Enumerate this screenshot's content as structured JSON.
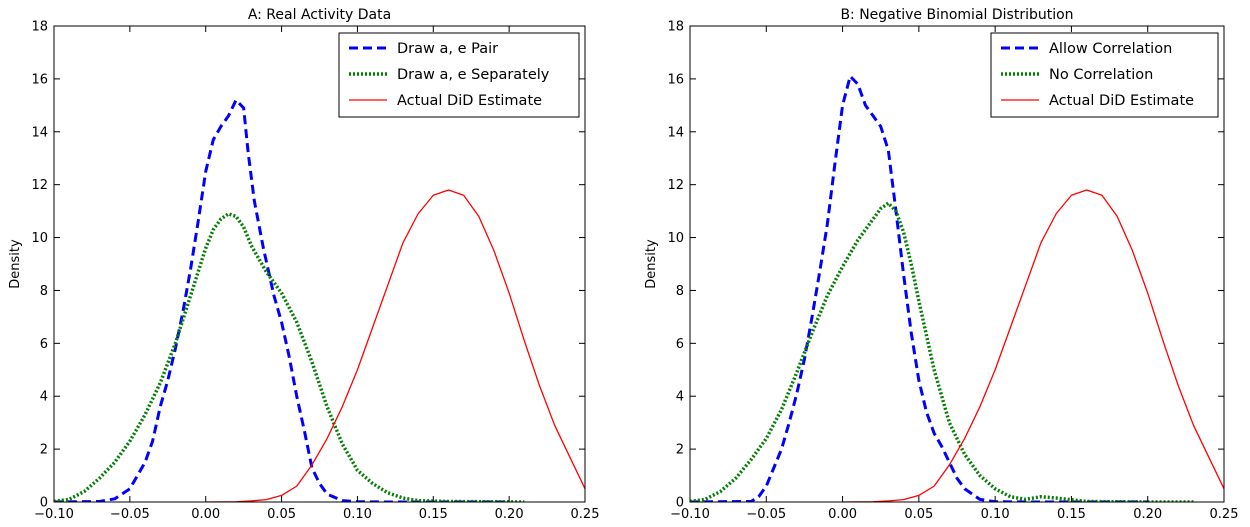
{
  "chart_data": [
    {
      "type": "line",
      "title": "A: Real Activity Data",
      "xlabel": "",
      "ylabel": "Density",
      "xlim": [
        -0.1,
        0.25
      ],
      "ylim": [
        0,
        18
      ],
      "xticks": [
        "−0.10",
        "−0.05",
        "0.00",
        "0.05",
        "0.10",
        "0.15",
        "0.20",
        "0.25"
      ],
      "xtick_values": [
        -0.1,
        -0.05,
        0.0,
        0.05,
        0.1,
        0.15,
        0.2,
        0.25
      ],
      "yticks": [
        "0",
        "2",
        "4",
        "6",
        "8",
        "10",
        "12",
        "14",
        "16",
        "18"
      ],
      "ytick_values": [
        0,
        2,
        4,
        6,
        8,
        10,
        12,
        14,
        16,
        18
      ],
      "legend_position": "top-right",
      "series": [
        {
          "name": "Draw a, e Pair",
          "color": "#0000ff",
          "style": "dashed",
          "points": [
            [
              -0.1,
              0
            ],
            [
              -0.07,
              0.02
            ],
            [
              -0.06,
              0.12
            ],
            [
              -0.05,
              0.5
            ],
            [
              -0.04,
              1.5
            ],
            [
              -0.035,
              2.3
            ],
            [
              -0.03,
              3.6
            ],
            [
              -0.025,
              4.6
            ],
            [
              -0.02,
              5.8
            ],
            [
              -0.015,
              7.2
            ],
            [
              -0.01,
              8.8
            ],
            [
              -0.005,
              10.6
            ],
            [
              0.0,
              12.5
            ],
            [
              0.005,
              13.7
            ],
            [
              0.01,
              14.2
            ],
            [
              0.015,
              14.6
            ],
            [
              0.02,
              15.2
            ],
            [
              0.025,
              14.9
            ],
            [
              0.028,
              13.2
            ],
            [
              0.032,
              11.4
            ],
            [
              0.038,
              9.6
            ],
            [
              0.045,
              7.8
            ],
            [
              0.05,
              6.8
            ],
            [
              0.055,
              5.5
            ],
            [
              0.06,
              4.0
            ],
            [
              0.065,
              2.7
            ],
            [
              0.07,
              1.3
            ],
            [
              0.075,
              0.7
            ],
            [
              0.08,
              0.3
            ],
            [
              0.09,
              0.05
            ],
            [
              0.1,
              0.01
            ],
            [
              0.12,
              0
            ],
            [
              0.2,
              0
            ]
          ]
        },
        {
          "name": "Draw a, e Separately",
          "color": "#007f00",
          "style": "dotted",
          "points": [
            [
              -0.1,
              0.02
            ],
            [
              -0.09,
              0.1
            ],
            [
              -0.08,
              0.4
            ],
            [
              -0.07,
              0.9
            ],
            [
              -0.06,
              1.5
            ],
            [
              -0.05,
              2.3
            ],
            [
              -0.04,
              3.3
            ],
            [
              -0.03,
              4.5
            ],
            [
              -0.02,
              6.0
            ],
            [
              -0.01,
              7.8
            ],
            [
              0.0,
              9.6
            ],
            [
              0.005,
              10.3
            ],
            [
              0.01,
              10.7
            ],
            [
              0.015,
              10.9
            ],
            [
              0.02,
              10.8
            ],
            [
              0.025,
              10.4
            ],
            [
              0.03,
              9.7
            ],
            [
              0.04,
              8.7
            ],
            [
              0.05,
              7.9
            ],
            [
              0.06,
              6.8
            ],
            [
              0.07,
              5.3
            ],
            [
              0.08,
              3.6
            ],
            [
              0.09,
              2.2
            ],
            [
              0.1,
              1.2
            ],
            [
              0.11,
              0.7
            ],
            [
              0.12,
              0.35
            ],
            [
              0.13,
              0.15
            ],
            [
              0.14,
              0.05
            ],
            [
              0.16,
              0.02
            ],
            [
              0.21,
              0
            ]
          ]
        },
        {
          "name": "Actual DiD Estimate",
          "color": "#ff0000",
          "style": "solid",
          "points": [
            [
              0.0,
              0
            ],
            [
              0.02,
              0.01
            ],
            [
              0.03,
              0.04
            ],
            [
              0.04,
              0.09
            ],
            [
              0.05,
              0.25
            ],
            [
              0.06,
              0.6
            ],
            [
              0.07,
              1.4
            ],
            [
              0.08,
              2.4
            ],
            [
              0.09,
              3.6
            ],
            [
              0.1,
              5.0
            ],
            [
              0.11,
              6.6
            ],
            [
              0.12,
              8.2
            ],
            [
              0.13,
              9.8
            ],
            [
              0.14,
              10.9
            ],
            [
              0.15,
              11.6
            ],
            [
              0.16,
              11.8
            ],
            [
              0.17,
              11.6
            ],
            [
              0.18,
              10.8
            ],
            [
              0.19,
              9.5
            ],
            [
              0.2,
              7.9
            ],
            [
              0.21,
              6.1
            ],
            [
              0.22,
              4.4
            ],
            [
              0.23,
              2.9
            ],
            [
              0.24,
              1.7
            ],
            [
              0.25,
              0.5
            ]
          ]
        }
      ]
    },
    {
      "type": "line",
      "title": "B: Negative Binomial Distribution",
      "xlabel": "",
      "ylabel": "Density",
      "xlim": [
        -0.1,
        0.25
      ],
      "ylim": [
        0,
        18
      ],
      "xticks": [
        "−0.10",
        "−0.05",
        "0.00",
        "0.05",
        "0.10",
        "0.15",
        "0.20",
        "0.25"
      ],
      "xtick_values": [
        -0.1,
        -0.05,
        0.0,
        0.05,
        0.1,
        0.15,
        0.2,
        0.25
      ],
      "yticks": [
        "0",
        "2",
        "4",
        "6",
        "8",
        "10",
        "12",
        "14",
        "16",
        "18"
      ],
      "ytick_values": [
        0,
        2,
        4,
        6,
        8,
        10,
        12,
        14,
        16,
        18
      ],
      "legend_position": "top-right",
      "series": [
        {
          "name": "Allow Correlation",
          "color": "#0000ff",
          "style": "dashed",
          "points": [
            [
              -0.1,
              0
            ],
            [
              -0.06,
              0.02
            ],
            [
              -0.055,
              0.2
            ],
            [
              -0.05,
              0.6
            ],
            [
              -0.045,
              1.3
            ],
            [
              -0.04,
              2.0
            ],
            [
              -0.035,
              3.0
            ],
            [
              -0.03,
              4.1
            ],
            [
              -0.025,
              5.4
            ],
            [
              -0.02,
              7.0
            ],
            [
              -0.015,
              8.7
            ],
            [
              -0.01,
              10.5
            ],
            [
              -0.005,
              12.8
            ],
            [
              0.0,
              15.0
            ],
            [
              0.005,
              16.1
            ],
            [
              0.01,
              15.8
            ],
            [
              0.015,
              15.0
            ],
            [
              0.02,
              14.6
            ],
            [
              0.025,
              14.2
            ],
            [
              0.03,
              13.3
            ],
            [
              0.035,
              11.0
            ],
            [
              0.04,
              8.6
            ],
            [
              0.045,
              6.4
            ],
            [
              0.05,
              4.6
            ],
            [
              0.055,
              3.4
            ],
            [
              0.06,
              2.6
            ],
            [
              0.065,
              2.1
            ],
            [
              0.07,
              1.5
            ],
            [
              0.075,
              0.9
            ],
            [
              0.08,
              0.5
            ],
            [
              0.09,
              0.1
            ],
            [
              0.1,
              0.01
            ],
            [
              0.12,
              0
            ],
            [
              0.2,
              0
            ]
          ]
        },
        {
          "name": "No Correlation",
          "color": "#007f00",
          "style": "dotted",
          "points": [
            [
              -0.1,
              0.02
            ],
            [
              -0.09,
              0.1
            ],
            [
              -0.08,
              0.4
            ],
            [
              -0.07,
              0.9
            ],
            [
              -0.06,
              1.6
            ],
            [
              -0.05,
              2.4
            ],
            [
              -0.04,
              3.5
            ],
            [
              -0.03,
              4.9
            ],
            [
              -0.02,
              6.4
            ],
            [
              -0.01,
              7.8
            ],
            [
              0.0,
              8.9
            ],
            [
              0.01,
              9.9
            ],
            [
              0.02,
              10.7
            ],
            [
              0.025,
              11.1
            ],
            [
              0.03,
              11.3
            ],
            [
              0.035,
              11.0
            ],
            [
              0.04,
              10.2
            ],
            [
              0.045,
              9.0
            ],
            [
              0.05,
              7.6
            ],
            [
              0.055,
              6.3
            ],
            [
              0.06,
              5.0
            ],
            [
              0.07,
              3.0
            ],
            [
              0.08,
              1.8
            ],
            [
              0.09,
              1.0
            ],
            [
              0.1,
              0.5
            ],
            [
              0.11,
              0.2
            ],
            [
              0.12,
              0.1
            ],
            [
              0.13,
              0.2
            ],
            [
              0.14,
              0.15
            ],
            [
              0.16,
              0.02
            ],
            [
              0.2,
              0
            ],
            [
              0.23,
              0
            ]
          ]
        },
        {
          "name": "Actual DiD Estimate",
          "color": "#ff0000",
          "style": "solid",
          "points": [
            [
              0.0,
              0
            ],
            [
              0.02,
              0.01
            ],
            [
              0.03,
              0.04
            ],
            [
              0.04,
              0.09
            ],
            [
              0.05,
              0.25
            ],
            [
              0.06,
              0.6
            ],
            [
              0.07,
              1.4
            ],
            [
              0.08,
              2.4
            ],
            [
              0.09,
              3.6
            ],
            [
              0.1,
              5.0
            ],
            [
              0.11,
              6.6
            ],
            [
              0.12,
              8.2
            ],
            [
              0.13,
              9.8
            ],
            [
              0.14,
              10.9
            ],
            [
              0.15,
              11.6
            ],
            [
              0.16,
              11.8
            ],
            [
              0.17,
              11.6
            ],
            [
              0.18,
              10.8
            ],
            [
              0.19,
              9.5
            ],
            [
              0.2,
              7.9
            ],
            [
              0.21,
              6.1
            ],
            [
              0.22,
              4.4
            ],
            [
              0.23,
              2.9
            ],
            [
              0.24,
              1.7
            ],
            [
              0.25,
              0.5
            ]
          ]
        }
      ]
    }
  ]
}
